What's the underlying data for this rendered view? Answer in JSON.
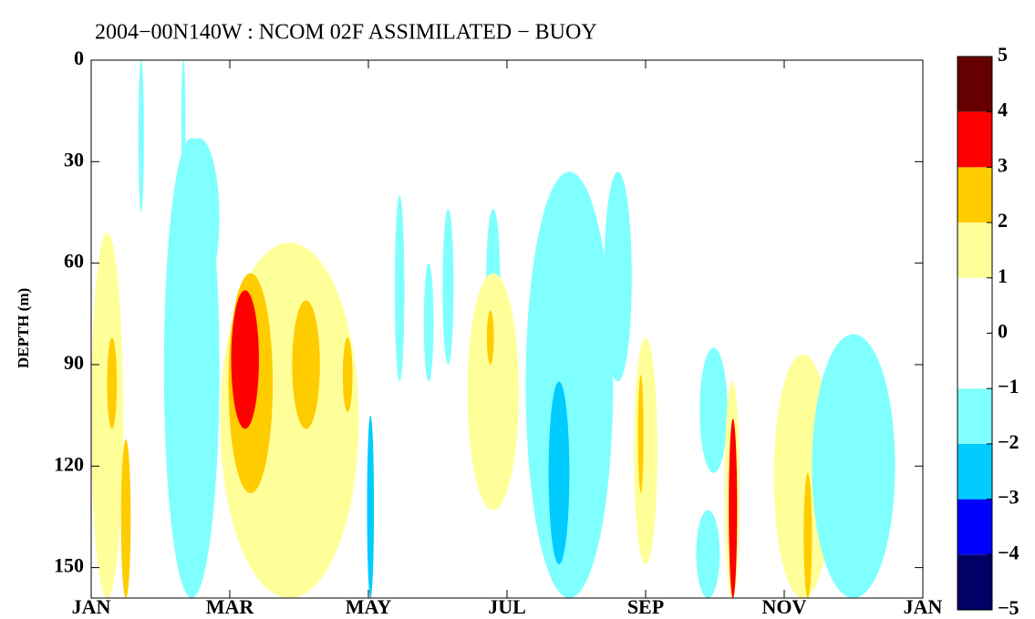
{
  "chart_data": {
    "type": "contour",
    "title": "2004−00N140W : NCOM 02F ASSIMILATED − BUOY",
    "ylabel": "DEPTH (m)",
    "xlim": [
      0,
      12
    ],
    "xticks": [
      {
        "value": 0,
        "label": "JAN"
      },
      {
        "value": 2,
        "label": "MAR"
      },
      {
        "value": 4,
        "label": "MAY"
      },
      {
        "value": 6,
        "label": "JUL"
      },
      {
        "value": 8,
        "label": "SEP"
      },
      {
        "value": 10,
        "label": "NOV"
      },
      {
        "value": 12,
        "label": "JAN"
      }
    ],
    "ylim": [
      159,
      0
    ],
    "yticks": [
      0,
      30,
      60,
      90,
      120,
      150
    ],
    "colorbar": {
      "ticks": [
        {
          "value": -5,
          "label": "−5"
        },
        {
          "value": -4,
          "label": "−4"
        },
        {
          "value": -3,
          "label": "−3"
        },
        {
          "value": -2,
          "label": "−2"
        },
        {
          "value": -1,
          "label": "−1"
        },
        0,
        1,
        2,
        3,
        4,
        5
      ],
      "colors": [
        "#000066",
        "#0000ff",
        "#00ccff",
        "#80ffff",
        "#ffffff",
        "#ffffff",
        "#ffff99",
        "#ffcc00",
        "#ff0000",
        "#660000"
      ]
    },
    "regions": [
      {
        "x": 0.23,
        "dx": 0.23,
        "depth": [
          51,
          159
        ],
        "level": 1
      },
      {
        "x": 0.3,
        "dx": 0.07,
        "depth": [
          82,
          109
        ],
        "level": 2
      },
      {
        "x": 0.5,
        "dx": 0.07,
        "depth": [
          112,
          159
        ],
        "level": 2
      },
      {
        "x": 0.72,
        "dx": 0.04,
        "depth": [
          0,
          45
        ],
        "level": -2
      },
      {
        "x": 1.33,
        "dx": 0.03,
        "depth": [
          0,
          36
        ],
        "level": -2
      },
      {
        "x": 1.45,
        "dx": 0.4,
        "depth": [
          23,
          159
        ],
        "level": -2
      },
      {
        "x": 1.55,
        "dx": 0.3,
        "depth": [
          23,
          70
        ],
        "level": -2
      },
      {
        "x": 2.86,
        "dx": 1.0,
        "depth": [
          54,
          159
        ],
        "level": 1
      },
      {
        "x": 2.3,
        "dx": 0.32,
        "depth": [
          63,
          128
        ],
        "level": 2
      },
      {
        "x": 2.22,
        "dx": 0.2,
        "depth": [
          68,
          109
        ],
        "level": 3
      },
      {
        "x": 3.1,
        "dx": 0.2,
        "depth": [
          71,
          109
        ],
        "level": 2
      },
      {
        "x": 3.7,
        "dx": 0.07,
        "depth": [
          82,
          104
        ],
        "level": 2
      },
      {
        "x": 4.03,
        "dx": 0.05,
        "depth": [
          105,
          159
        ],
        "level": -3
      },
      {
        "x": 4.45,
        "dx": 0.07,
        "depth": [
          40,
          95
        ],
        "level": -2
      },
      {
        "x": 4.87,
        "dx": 0.07,
        "depth": [
          60,
          95
        ],
        "level": -2
      },
      {
        "x": 5.15,
        "dx": 0.08,
        "depth": [
          44,
          90
        ],
        "level": -2
      },
      {
        "x": 5.8,
        "dx": 0.1,
        "depth": [
          44,
          85
        ],
        "level": -2
      },
      {
        "x": 5.8,
        "dx": 0.37,
        "depth": [
          63,
          133
        ],
        "level": 1
      },
      {
        "x": 5.76,
        "dx": 0.05,
        "depth": [
          74,
          90
        ],
        "level": 2
      },
      {
        "x": 6.9,
        "dx": 0.63,
        "depth": [
          33,
          159
        ],
        "level": -2
      },
      {
        "x": 6.75,
        "dx": 0.15,
        "depth": [
          95,
          149
        ],
        "level": -3
      },
      {
        "x": 7.6,
        "dx": 0.2,
        "depth": [
          33,
          95
        ],
        "level": -2
      },
      {
        "x": 8.0,
        "dx": 0.17,
        "depth": [
          82,
          149
        ],
        "level": 1
      },
      {
        "x": 7.93,
        "dx": 0.04,
        "depth": [
          93,
          128
        ],
        "level": 2
      },
      {
        "x": 8.98,
        "dx": 0.2,
        "depth": [
          85,
          122
        ],
        "level": -2
      },
      {
        "x": 8.9,
        "dx": 0.17,
        "depth": [
          133,
          159
        ],
        "level": -2
      },
      {
        "x": 9.25,
        "dx": 0.11,
        "depth": [
          95,
          159
        ],
        "level": 1
      },
      {
        "x": 9.26,
        "dx": 0.06,
        "depth": [
          106,
          159
        ],
        "level": 3
      },
      {
        "x": 10.27,
        "dx": 0.42,
        "depth": [
          87,
          159
        ],
        "level": 1
      },
      {
        "x": 10.34,
        "dx": 0.06,
        "depth": [
          122,
          159
        ],
        "level": 2
      },
      {
        "x": 11.0,
        "dx": 0.6,
        "depth": [
          81,
          159
        ],
        "level": -2
      }
    ]
  }
}
